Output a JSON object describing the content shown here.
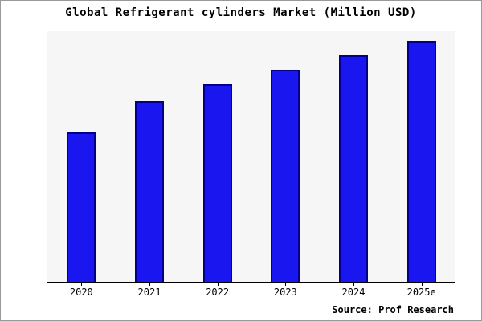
{
  "chart_data": {
    "type": "bar",
    "title": "Global Refrigerant cylinders Market (Million USD)",
    "categories": [
      "2020",
      "2021",
      "2022",
      "2023",
      "2024",
      "2025e"
    ],
    "values": [
      62,
      75,
      82,
      88,
      94,
      100
    ],
    "xlabel": "",
    "ylabel": "",
    "ylim": [
      0,
      100
    ],
    "grid": false,
    "legend": false
  },
  "source": {
    "label": "Source: Prof Research"
  },
  "colors": {
    "bar_fill": "#1a16f0",
    "bar_border": "#00008b",
    "plot_background": "#f6f6f6",
    "axis": "#000000",
    "frame_border": "#999999"
  }
}
